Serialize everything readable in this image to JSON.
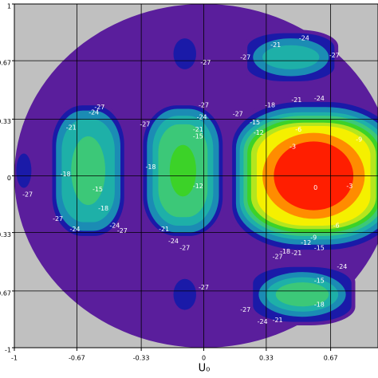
{
  "chart_data": {
    "type": "contour",
    "xlabel": "U₀",
    "xlim": [
      -1,
      0.92
    ],
    "ylim": [
      -1,
      1
    ],
    "xticks": [
      -1,
      -0.67,
      -0.33,
      0,
      0.33,
      0.67
    ],
    "yticks": [
      1,
      0.67,
      0.33,
      0,
      -0.33,
      -0.67,
      -1
    ],
    "grid": true,
    "background": "#c0c0c0",
    "levels": [
      {
        "value": -27,
        "color": "#5a1e9c"
      },
      {
        "value": -24,
        "color": "#1a1aa8"
      },
      {
        "value": -21,
        "color": "#1b8cb4"
      },
      {
        "value": -18,
        "color": "#1eb0a8"
      },
      {
        "value": -15,
        "color": "#3cc878"
      },
      {
        "value": -12,
        "color": "#3cd228"
      },
      {
        "value": -9,
        "color": "#b4e61e"
      },
      {
        "value": -6,
        "color": "#f5f000"
      },
      {
        "value": -3,
        "color": "#ff8c00"
      },
      {
        "value": 0,
        "color": "#ff1e00"
      }
    ],
    "regions": [
      {
        "level": -27,
        "shape": "ellipse",
        "cx": 0,
        "cy": 0,
        "rx": 1,
        "ry": 1
      },
      {
        "level": -24,
        "shape": "ellipse",
        "cx": -0.1,
        "cy": 0.71,
        "rx": 0.06,
        "ry": 0.09
      },
      {
        "level": -24,
        "shape": "ellipse",
        "cx": -0.1,
        "cy": -0.69,
        "rx": 0.06,
        "ry": 0.09
      },
      {
        "level": -24,
        "shape": "ellipse",
        "cx": -0.95,
        "cy": 0.03,
        "rx": 0.04,
        "ry": 0.1
      },
      {
        "level": -27,
        "shape": "rect",
        "cx": 0.58,
        "cy": 0,
        "rx": 0.45,
        "ry": 0.45
      },
      {
        "level": -24,
        "shape": "rect",
        "cx": 0.58,
        "cy": 0,
        "rx": 0.43,
        "ry": 0.43
      },
      {
        "level": -21,
        "shape": "rect",
        "cx": 0.58,
        "cy": 0,
        "rx": 0.41,
        "ry": 0.4
      },
      {
        "level": -18,
        "shape": "rect",
        "cx": 0.58,
        "cy": 0,
        "rx": 0.39,
        "ry": 0.37
      },
      {
        "level": -15,
        "shape": "rect",
        "cx": 0.58,
        "cy": 0,
        "rx": 0.37,
        "ry": 0.35
      },
      {
        "level": -12,
        "shape": "rect",
        "cx": 0.58,
        "cy": 0,
        "rx": 0.35,
        "ry": 0.33
      },
      {
        "level": -9,
        "shape": "rect",
        "cx": 0.58,
        "cy": 0,
        "rx": 0.33,
        "ry": 0.31
      },
      {
        "level": -6,
        "shape": "rect",
        "cx": 0.58,
        "cy": 0,
        "rx": 0.3,
        "ry": 0.29
      },
      {
        "level": -3,
        "shape": "ellipse",
        "cx": 0.58,
        "cy": 0,
        "rx": 0.27,
        "ry": 0.25
      },
      {
        "level": 0,
        "shape": "ellipse",
        "cx": 0.58,
        "cy": 0,
        "rx": 0.21,
        "ry": 0.2
      },
      {
        "level": -27,
        "shape": "rect",
        "cx": -0.11,
        "cy": 0.03,
        "rx": 0.22,
        "ry": 0.4
      },
      {
        "level": -24,
        "shape": "rect",
        "cx": -0.11,
        "cy": 0.03,
        "rx": 0.21,
        "ry": 0.38
      },
      {
        "level": -21,
        "shape": "rect",
        "cx": -0.11,
        "cy": 0.03,
        "rx": 0.19,
        "ry": 0.36
      },
      {
        "level": -18,
        "shape": "rect",
        "cx": -0.11,
        "cy": 0.03,
        "rx": 0.16,
        "ry": 0.32
      },
      {
        "level": -15,
        "shape": "rect",
        "cx": -0.11,
        "cy": 0.03,
        "rx": 0.13,
        "ry": 0.27
      },
      {
        "level": -12,
        "shape": "ellipse",
        "cx": -0.11,
        "cy": 0.03,
        "rx": 0.07,
        "ry": 0.15
      },
      {
        "level": -27,
        "shape": "rect",
        "cx": -0.61,
        "cy": 0.03,
        "rx": 0.2,
        "ry": 0.4
      },
      {
        "level": -24,
        "shape": "rect",
        "cx": -0.61,
        "cy": 0.03,
        "rx": 0.19,
        "ry": 0.38
      },
      {
        "level": -21,
        "shape": "rect",
        "cx": -0.61,
        "cy": 0.03,
        "rx": 0.17,
        "ry": 0.35
      },
      {
        "level": -18,
        "shape": "rect",
        "cx": -0.61,
        "cy": 0.03,
        "rx": 0.14,
        "ry": 0.3
      },
      {
        "level": -15,
        "shape": "ellipse",
        "cx": -0.61,
        "cy": 0.03,
        "rx": 0.09,
        "ry": 0.2
      },
      {
        "level": -27,
        "shape": "rect",
        "cx": 0.46,
        "cy": 0.69,
        "rx": 0.25,
        "ry": 0.16
      },
      {
        "level": -24,
        "shape": "rect",
        "cx": 0.46,
        "cy": 0.69,
        "rx": 0.23,
        "ry": 0.14
      },
      {
        "level": -21,
        "shape": "ellipse",
        "cx": 0.46,
        "cy": 0.69,
        "rx": 0.2,
        "ry": 0.11
      },
      {
        "level": -18,
        "shape": "ellipse",
        "cx": 0.46,
        "cy": 0.69,
        "rx": 0.15,
        "ry": 0.07
      },
      {
        "level": -27,
        "shape": "rect",
        "cx": 0.52,
        "cy": -0.69,
        "rx": 0.28,
        "ry": 0.18
      },
      {
        "level": -24,
        "shape": "rect",
        "cx": 0.52,
        "cy": -0.69,
        "rx": 0.26,
        "ry": 0.16
      },
      {
        "level": -21,
        "shape": "ellipse",
        "cx": 0.52,
        "cy": -0.69,
        "rx": 0.23,
        "ry": 0.13
      },
      {
        "level": -18,
        "shape": "ellipse",
        "cx": 0.52,
        "cy": -0.69,
        "rx": 0.19,
        "ry": 0.1
      },
      {
        "level": -15,
        "shape": "ellipse",
        "cx": 0.52,
        "cy": -0.69,
        "rx": 0.14,
        "ry": 0.07
      }
    ],
    "labels": [
      {
        "x": 0.35,
        "y": 0.41,
        "value": -18
      },
      {
        "x": 0.49,
        "y": 0.44,
        "value": -21
      },
      {
        "x": 0.61,
        "y": 0.45,
        "value": -24
      },
      {
        "x": 0.18,
        "y": 0.36,
        "value": -27
      },
      {
        "x": 0.27,
        "y": 0.31,
        "value": -15
      },
      {
        "x": 0.29,
        "y": 0.25,
        "value": -12
      },
      {
        "x": 0.82,
        "y": 0.21,
        "value": -9
      },
      {
        "x": 0.5,
        "y": 0.27,
        "value": -6
      },
      {
        "x": 0.47,
        "y": 0.17,
        "value": -3
      },
      {
        "x": 0.59,
        "y": -0.07,
        "value": 0
      },
      {
        "x": 0.77,
        "y": -0.06,
        "value": -3
      },
      {
        "x": 0.7,
        "y": -0.29,
        "value": -6
      },
      {
        "x": 0.58,
        "y": -0.36,
        "value": -9
      },
      {
        "x": 0.54,
        "y": -0.39,
        "value": -12
      },
      {
        "x": 0.61,
        "y": -0.42,
        "value": -15
      },
      {
        "x": 0.43,
        "y": -0.44,
        "value": -18
      },
      {
        "x": 0.49,
        "y": -0.45,
        "value": -21
      },
      {
        "x": 0.39,
        "y": -0.47,
        "value": -27
      },
      {
        "x": 0.53,
        "y": 0.8,
        "value": -24
      },
      {
        "x": 0.38,
        "y": 0.76,
        "value": -21
      },
      {
        "x": 0.22,
        "y": 0.69,
        "value": -27
      },
      {
        "x": 0.69,
        "y": 0.7,
        "value": -27
      },
      {
        "x": 0.01,
        "y": 0.66,
        "value": -27
      },
      {
        "x": 0,
        "y": 0.41,
        "value": -27
      },
      {
        "x": -0.01,
        "y": 0.34,
        "value": -24
      },
      {
        "x": -0.03,
        "y": 0.27,
        "value": -21
      },
      {
        "x": -0.03,
        "y": 0.23,
        "value": -15
      },
      {
        "x": -0.31,
        "y": 0.3,
        "value": -27
      },
      {
        "x": -0.28,
        "y": 0.05,
        "value": -18
      },
      {
        "x": -0.03,
        "y": -0.06,
        "value": -12
      },
      {
        "x": -0.21,
        "y": -0.31,
        "value": -21
      },
      {
        "x": -0.16,
        "y": -0.38,
        "value": -24
      },
      {
        "x": -0.1,
        "y": -0.42,
        "value": -27
      },
      {
        "x": -0.55,
        "y": 0.4,
        "value": -27
      },
      {
        "x": -0.58,
        "y": 0.37,
        "value": -24
      },
      {
        "x": -0.7,
        "y": 0.28,
        "value": -21
      },
      {
        "x": -0.73,
        "y": 0.01,
        "value": -18
      },
      {
        "x": -0.56,
        "y": -0.08,
        "value": -15
      },
      {
        "x": -0.53,
        "y": -0.19,
        "value": -18
      },
      {
        "x": -0.77,
        "y": -0.25,
        "value": -27
      },
      {
        "x": -0.68,
        "y": -0.31,
        "value": -24
      },
      {
        "x": -0.47,
        "y": -0.29,
        "value": -24
      },
      {
        "x": -0.43,
        "y": -0.32,
        "value": -27
      },
      {
        "x": -0.93,
        "y": -0.11,
        "value": -27
      },
      {
        "x": 0.73,
        "y": -0.53,
        "value": -24
      },
      {
        "x": 0.61,
        "y": -0.61,
        "value": -15
      },
      {
        "x": 0.61,
        "y": -0.75,
        "value": -18
      },
      {
        "x": 0.39,
        "y": -0.84,
        "value": -21
      },
      {
        "x": 0.31,
        "y": -0.85,
        "value": -24
      },
      {
        "x": 0.22,
        "y": -0.78,
        "value": -27
      },
      {
        "x": 0,
        "y": -0.65,
        "value": -27
      }
    ]
  }
}
